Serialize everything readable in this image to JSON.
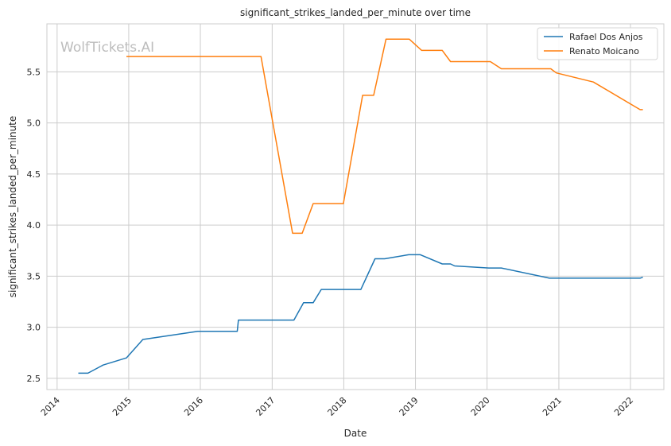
{
  "chart_data": {
    "type": "line",
    "title": "significant_strikes_landed_per_minute over time",
    "xlabel": "Date",
    "ylabel": "significant_strikes_landed_per_minute",
    "watermark": "WolfTickets.AI",
    "x_ticks": [
      "2014",
      "2015",
      "2016",
      "2017",
      "2018",
      "2019",
      "2020",
      "2021",
      "2022"
    ],
    "y_ticks": [
      "2.5",
      "3.0",
      "3.5",
      "4.0",
      "4.5",
      "5.0",
      "5.5"
    ],
    "xlim": [
      "2013-11-10",
      "2022-06-20"
    ],
    "ylim": [
      2.39,
      5.97
    ],
    "grid": true,
    "legend_position": "top-right",
    "series": [
      {
        "name": "Rafael Dos Anjos",
        "color": "#1f77b4",
        "points": [
          [
            "2014-04-19",
            2.55
          ],
          [
            "2014-06-07",
            2.55
          ],
          [
            "2014-08-23",
            2.63
          ],
          [
            "2014-12-20",
            2.7
          ],
          [
            "2015-03-14",
            2.88
          ],
          [
            "2015-12-19",
            2.96
          ],
          [
            "2016-07-07",
            2.96
          ],
          [
            "2016-07-13",
            3.07
          ],
          [
            "2017-04-22",
            3.07
          ],
          [
            "2017-06-10",
            3.24
          ],
          [
            "2017-07-29",
            3.24
          ],
          [
            "2017-09-08",
            3.37
          ],
          [
            "2018-03-29",
            3.37
          ],
          [
            "2018-06-09",
            3.67
          ],
          [
            "2018-07-28",
            3.67
          ],
          [
            "2018-11-28",
            3.71
          ],
          [
            "2019-01-26",
            3.71
          ],
          [
            "2019-05-18",
            3.62
          ],
          [
            "2019-06-29",
            3.62
          ],
          [
            "2019-07-20",
            3.6
          ],
          [
            "2020-01-10",
            3.58
          ],
          [
            "2020-03-14",
            3.58
          ],
          [
            "2020-11-14",
            3.48
          ],
          [
            "2022-02-19",
            3.48
          ],
          [
            "2022-03-05",
            3.49
          ]
        ]
      },
      {
        "name": "Renato Moicano",
        "color": "#ff7f0e",
        "points": [
          [
            "2014-12-20",
            5.65
          ],
          [
            "2016-11-05",
            5.65
          ],
          [
            "2017-04-15",
            3.92
          ],
          [
            "2017-06-03",
            3.92
          ],
          [
            "2017-07-29",
            4.21
          ],
          [
            "2017-12-30",
            4.21
          ],
          [
            "2018-04-07",
            5.27
          ],
          [
            "2018-06-02",
            5.27
          ],
          [
            "2018-08-04",
            5.82
          ],
          [
            "2018-12-01",
            5.82
          ],
          [
            "2019-02-02",
            5.71
          ],
          [
            "2019-05-18",
            5.71
          ],
          [
            "2019-06-29",
            5.6
          ],
          [
            "2020-01-18",
            5.6
          ],
          [
            "2020-03-14",
            5.53
          ],
          [
            "2020-11-21",
            5.53
          ],
          [
            "2020-12-19",
            5.49
          ],
          [
            "2021-06-26",
            5.4
          ],
          [
            "2022-02-19",
            5.13
          ],
          [
            "2022-03-05",
            5.13
          ]
        ]
      }
    ]
  }
}
